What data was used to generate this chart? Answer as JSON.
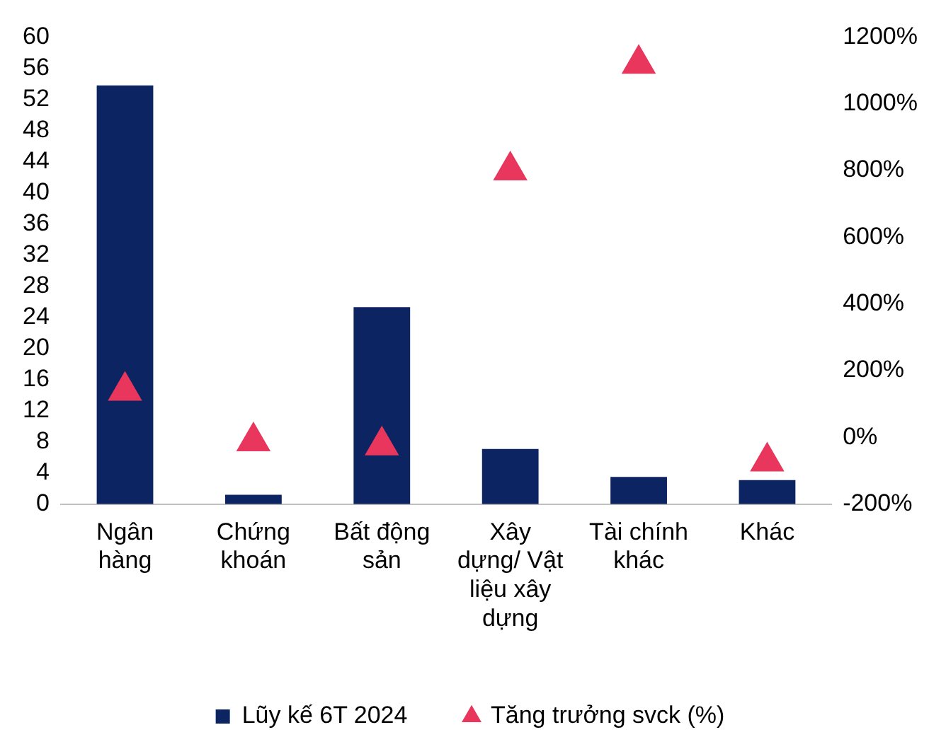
{
  "chart_data": {
    "type": "bar",
    "categories": [
      "Ngân hàng",
      "Chứng khoán",
      "Bất động sản",
      "Xây dựng/ Vật liệu xây dựng",
      "Tài chính khác",
      "Khác"
    ],
    "series": [
      {
        "name": "Lũy kế 6T 2024",
        "color": "#0c2461",
        "values": [
          53.8,
          1.2,
          25.3,
          7.1,
          3.5,
          3.1
        ]
      },
      {
        "name": "Tăng trưởng svck (%)",
        "type": "scatter",
        "axis": "y2",
        "marker": "triangle",
        "color": "#e8365d",
        "values": [
          140,
          -12,
          -24,
          800,
          1120,
          -72
        ]
      }
    ],
    "ylim": [
      0,
      60
    ],
    "yticks": [
      0,
      4,
      8,
      12,
      16,
      20,
      24,
      28,
      32,
      36,
      40,
      44,
      48,
      52,
      56,
      60
    ],
    "y2lim": [
      -200,
      1200
    ],
    "y2ticks": [
      {
        "value": -200,
        "label": "-200%"
      },
      {
        "value": 0,
        "label": "0%"
      },
      {
        "value": 200,
        "label": "200%"
      },
      {
        "value": 400,
        "label": "400%"
      },
      {
        "value": 600,
        "label": "600%"
      },
      {
        "value": 800,
        "label": "800%"
      },
      {
        "value": 1000,
        "label": "1000%"
      },
      {
        "value": 1200,
        "label": "1200%"
      }
    ],
    "grid": false,
    "legend": "bottom"
  }
}
